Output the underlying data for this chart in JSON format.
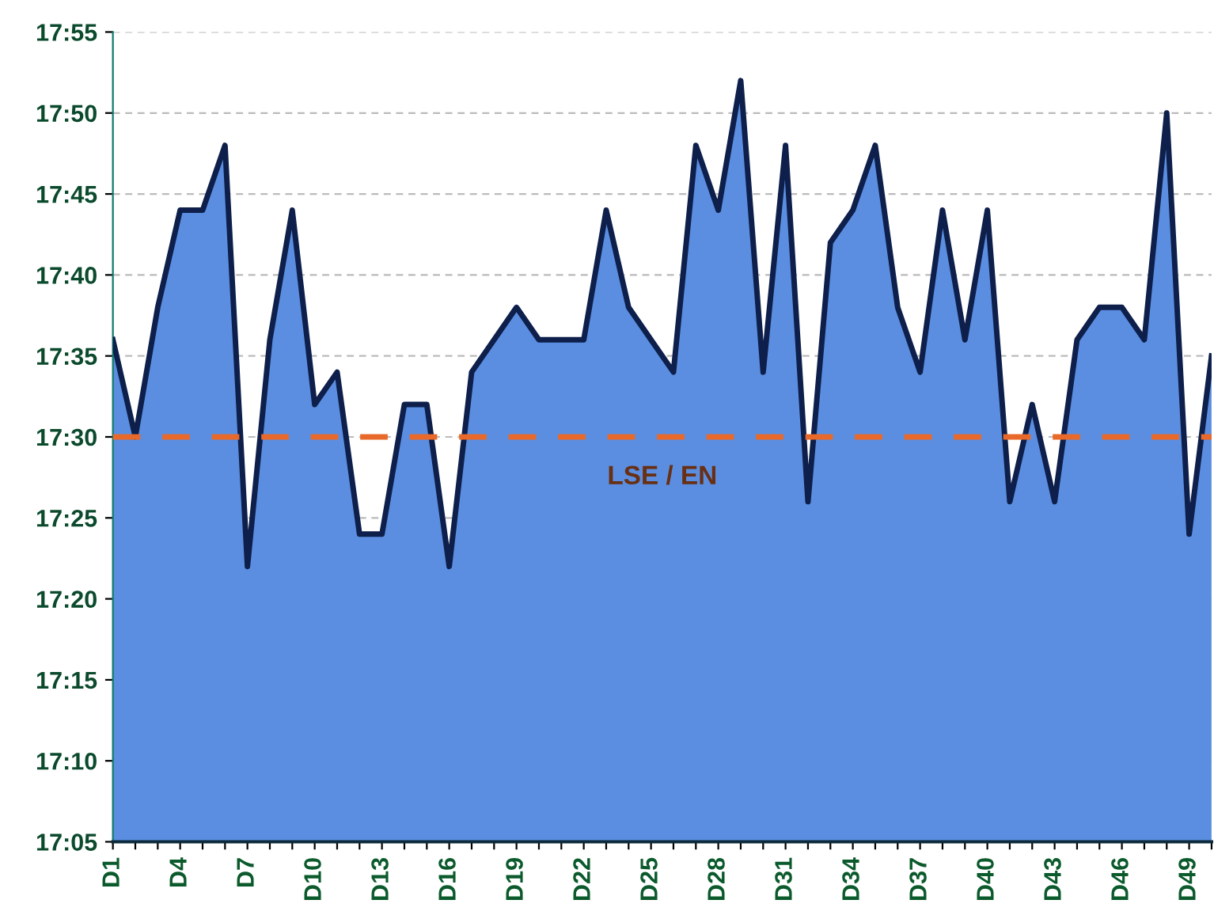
{
  "chart_data": {
    "type": "area",
    "categories": [
      "D1",
      null,
      null,
      "D4",
      null,
      null,
      "D7",
      null,
      null,
      "D10",
      null,
      null,
      "D13",
      null,
      null,
      "D16",
      null,
      null,
      "D19",
      null,
      null,
      "D22",
      null,
      null,
      "D25",
      null,
      null,
      "D28",
      null,
      null,
      "D31",
      null,
      null,
      "D34",
      null,
      null,
      "D37",
      null,
      null,
      "D40",
      null,
      null,
      "D43",
      null,
      null,
      "D46",
      null,
      null,
      "D49",
      null
    ],
    "series": [
      {
        "color": "#5b8ee0",
        "values": [
          1056,
          1050,
          1058,
          1064,
          1064,
          1068,
          1042,
          1056,
          1064,
          1052,
          1054,
          1044,
          1044,
          1052,
          1052,
          1042,
          1054,
          1056,
          1058,
          1056,
          1056,
          1056,
          1064,
          1058,
          1056,
          1054,
          1068,
          1064,
          1072,
          1054,
          1068,
          1046,
          1062,
          1064,
          1068,
          1058,
          1054,
          1064,
          1056,
          1064,
          1046,
          1052,
          1046,
          1056,
          1058,
          1058,
          1056,
          1070,
          1044,
          1055
        ]
      }
    ],
    "ylim": [
      1025,
      1075
    ],
    "yticks": [
      {
        "value": 1025,
        "label": "17:05"
      },
      {
        "value": 1030,
        "label": "17:10"
      },
      {
        "value": 1035,
        "label": "17:15"
      },
      {
        "value": 1040,
        "label": "17:20"
      },
      {
        "value": 1045,
        "label": "17:25"
      },
      {
        "value": 1050,
        "label": "17:30"
      },
      {
        "value": 1055,
        "label": "17:35"
      },
      {
        "value": 1060,
        "label": "17:40"
      },
      {
        "value": 1065,
        "label": "17:45"
      },
      {
        "value": 1070,
        "label": "17:50"
      },
      {
        "value": 1075,
        "label": "17:55"
      }
    ],
    "ref_lines": [
      {
        "axis": "y",
        "value": 1050,
        "label": "LSE / EN",
        "color": "#e8692a",
        "line_style": "dashed"
      }
    ],
    "grid": "y",
    "legend": false
  }
}
